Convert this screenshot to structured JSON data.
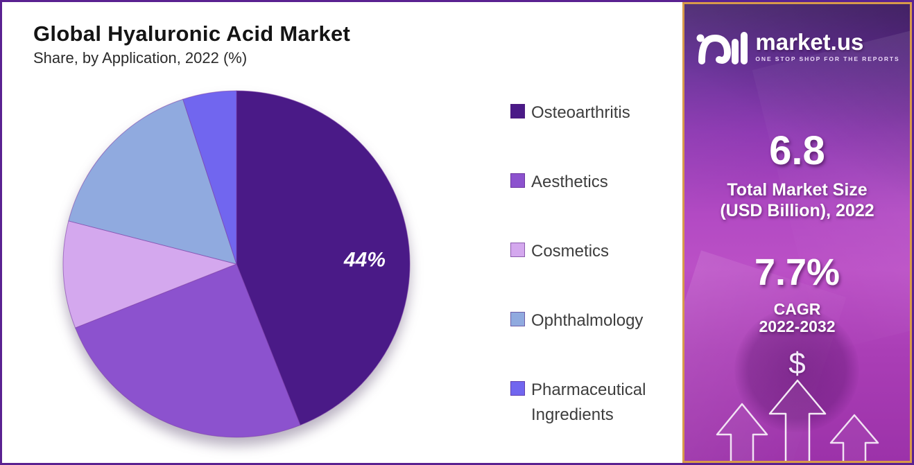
{
  "header": {
    "title": "Global Hyaluronic Acid Market",
    "subtitle": "Share, by Application, 2022 (%)"
  },
  "chart_data": {
    "type": "pie",
    "title": "Global Hyaluronic Acid Market Share, by Application, 2022 (%)",
    "unit": "%",
    "start_angle_deg": 0,
    "direction": "clockwise",
    "legend_position": "right",
    "slices": [
      {
        "label": "Osteoarthritis",
        "value": 44,
        "color": "#4a1a87",
        "data_label": "44%",
        "data_label_visible": true,
        "label_angle_deg": 88,
        "label_radius_frac": 0.74
      },
      {
        "label": "Aesthetics",
        "value": 25,
        "color": "#8c52ce",
        "data_label_visible": false
      },
      {
        "label": "Cosmetics",
        "value": 10,
        "color": "#d4a8ee",
        "data_label_visible": false
      },
      {
        "label": "Ophthalmology",
        "value": 16,
        "color": "#90aadf",
        "data_label_visible": false
      },
      {
        "label": "Pharmaceutical Ingredients",
        "value": 5,
        "color": "#7166ef",
        "data_label_visible": false
      }
    ]
  },
  "sidebar": {
    "logo": {
      "brand": "market.us",
      "tagline": "ONE STOP SHOP FOR THE REPORTS"
    },
    "market_size": {
      "value": "6.8",
      "label_line1": "Total Market Size",
      "label_line2": "(USD Billion), 2022"
    },
    "cagr": {
      "value": "7.7%",
      "label_line1": "CAGR",
      "label_line2": "2022-2032"
    },
    "dollar_symbol": "$"
  },
  "colors": {
    "canvas_border": "#5a2191",
    "panel_border": "#d89a4a",
    "panel_gradient_top": "#451f70",
    "panel_gradient_mid": "#b44bc5",
    "panel_gradient_bottom": "#9c32a9",
    "legend_text": "#3d3d3d",
    "pie_label_text": "#ffffff"
  }
}
